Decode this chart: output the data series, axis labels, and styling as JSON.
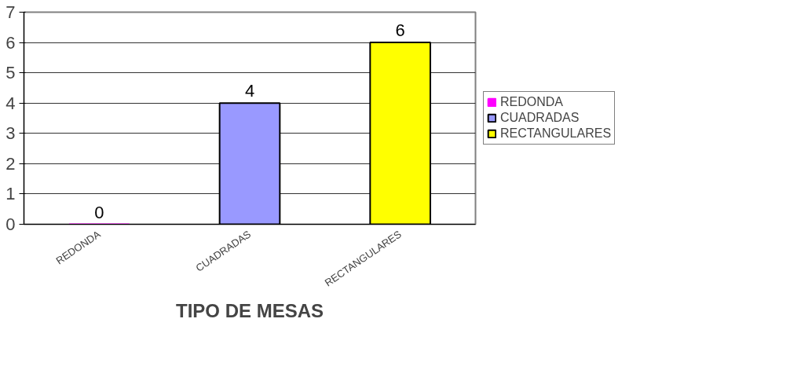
{
  "chart_data": {
    "type": "bar",
    "xlabel": "TIPO DE MESAS",
    "categories": [
      "REDONDA",
      "CUADRADAS",
      "RECTANGULARES"
    ],
    "series": [
      {
        "name": "REDONDA",
        "color": "#ff00ff",
        "values": [
          0,
          null,
          null
        ]
      },
      {
        "name": "CUADRADAS",
        "color": "#9999ff",
        "values": [
          null,
          4,
          null
        ]
      },
      {
        "name": "RECTANGULARES",
        "color": "#ffff00",
        "values": [
          null,
          null,
          6
        ]
      }
    ],
    "ylim": [
      0,
      7
    ],
    "yticks": [
      0,
      1,
      2,
      3,
      4,
      5,
      6,
      7
    ],
    "grid": "y",
    "legend": "right",
    "data_labels": true
  }
}
